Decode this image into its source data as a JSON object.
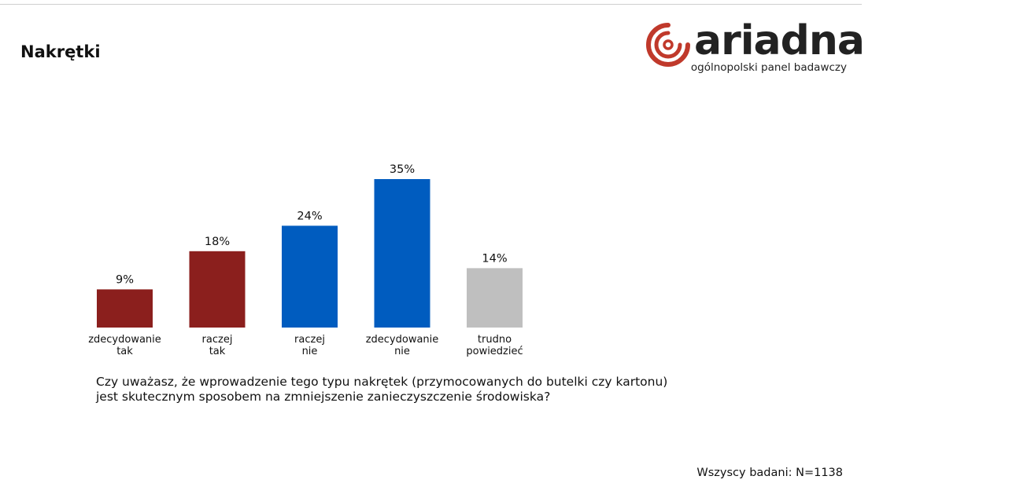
{
  "header": {
    "title": "Nakrętki"
  },
  "logo": {
    "wordmark": "ariadna",
    "tagline": "ogólnopolski panel badawczy",
    "accent": "#c0392b"
  },
  "chart_data": {
    "type": "bar",
    "categories": [
      [
        "zdecydowanie",
        "tak"
      ],
      [
        "raczej",
        "tak"
      ],
      [
        "raczej",
        "nie"
      ],
      [
        "zdecydowanie",
        "nie"
      ],
      [
        "trudno",
        "powiedzieć"
      ]
    ],
    "values": [
      9,
      18,
      24,
      35,
      14
    ],
    "value_labels": [
      "9%",
      "18%",
      "24%",
      "35%",
      "14%"
    ],
    "colors": [
      "#8b1f1d",
      "#8b1f1d",
      "#005cbf",
      "#005cbf",
      "#bfbfbf"
    ],
    "unit": "%",
    "grid": false,
    "legend": "none"
  },
  "question": {
    "lines": [
      "Czy uważasz, że wprowadzenie tego typu nakrętek (przymocowanych do butelki czy kartonu)",
      "jest skutecznym sposobem na zmniejszenie zanieczyszczenie środowiska?"
    ]
  },
  "footnote": "Wszyscy badani: N=1138"
}
